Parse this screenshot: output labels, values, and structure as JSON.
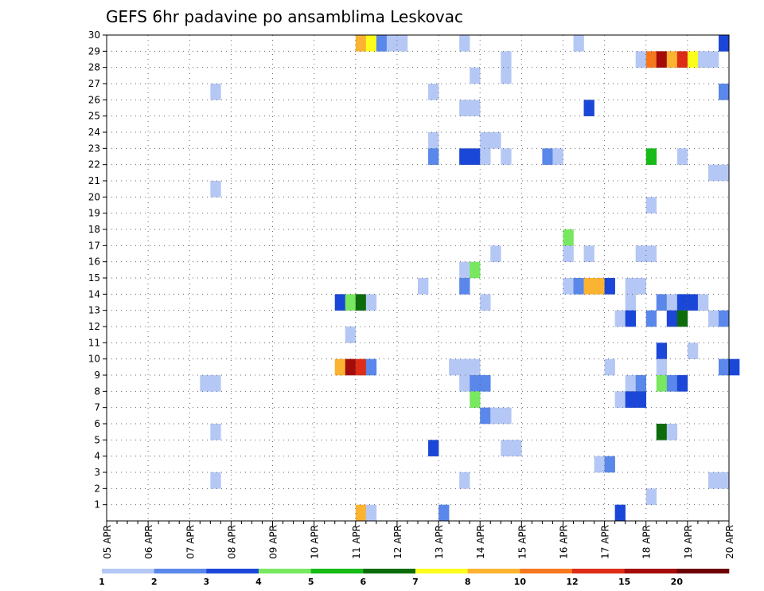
{
  "chart_data": {
    "type": "heatmap",
    "title": "GEFS 6hr padavine po ansamblima Leskovac",
    "x_tick_labels": [
      "05 APR",
      "06 APR",
      "07 APR",
      "08 APR",
      "09 APR",
      "10 APR",
      "11 APR",
      "12 APR",
      "13 APR",
      "14 APR",
      "15 APR",
      "16 APR",
      "17 APR",
      "18 APR",
      "19 APR",
      "20 APR"
    ],
    "y_tick_labels": [
      "1",
      "2",
      "3",
      "4",
      "5",
      "6",
      "7",
      "8",
      "9",
      "10",
      "11",
      "12",
      "13",
      "14",
      "15",
      "16",
      "17",
      "18",
      "19",
      "20",
      "21",
      "22",
      "23",
      "24",
      "25",
      "26",
      "27",
      "28",
      "29",
      "30"
    ],
    "time_step_hours": 6,
    "ylim": [
      0,
      30
    ],
    "grid": true,
    "legend_placement": "bottom",
    "colorbar": {
      "labels": [
        "1",
        "2",
        "3",
        "4",
        "5",
        "6",
        "7",
        "8",
        "10",
        "12",
        "15",
        "20"
      ],
      "colors": [
        "#b5c8f5",
        "#5a87ea",
        "#1b47d8",
        "#77e860",
        "#16bb16",
        "#0c6c0c",
        "#fdfd1c",
        "#fcb331",
        "#f7771e",
        "#dd2c17",
        "#a40c0b",
        "#6c0000"
      ]
    },
    "cells": [
      [
        24,
        30,
        "#fcb331"
      ],
      [
        25,
        30,
        "#fdfd1c"
      ],
      [
        26,
        30,
        "#5a87ea"
      ],
      [
        27,
        30,
        "#b5c8f5"
      ],
      [
        28,
        30,
        "#b5c8f5"
      ],
      [
        34,
        30,
        "#b5c8f5"
      ],
      [
        45,
        30,
        "#b5c8f5"
      ],
      [
        59,
        30,
        "#1b47d8"
      ],
      [
        51,
        29,
        "#b5c8f5"
      ],
      [
        52,
        29,
        "#f7771e"
      ],
      [
        53,
        29,
        "#a40c0b"
      ],
      [
        54,
        29,
        "#fcb331"
      ],
      [
        55,
        29,
        "#dd2c17"
      ],
      [
        56,
        29,
        "#fdfd1c"
      ],
      [
        57,
        29,
        "#b5c8f5"
      ],
      [
        58,
        29,
        "#b5c8f5"
      ],
      [
        38,
        29,
        "#b5c8f5"
      ],
      [
        35,
        28,
        "#b5c8f5"
      ],
      [
        38,
        28,
        "#b5c8f5"
      ],
      [
        10,
        27,
        "#b5c8f5"
      ],
      [
        31,
        27,
        "#b5c8f5"
      ],
      [
        59,
        27,
        "#5a87ea"
      ],
      [
        34,
        26,
        "#b5c8f5"
      ],
      [
        35,
        26,
        "#b5c8f5"
      ],
      [
        46,
        26,
        "#1b47d8"
      ],
      [
        31,
        24,
        "#b5c8f5"
      ],
      [
        36,
        24,
        "#b5c8f5"
      ],
      [
        37,
        24,
        "#b5c8f5"
      ],
      [
        31,
        23,
        "#5a87ea"
      ],
      [
        34,
        23,
        "#1b47d8"
      ],
      [
        35,
        23,
        "#1b47d8"
      ],
      [
        36,
        23,
        "#b5c8f5"
      ],
      [
        38,
        23,
        "#b5c8f5"
      ],
      [
        42,
        23,
        "#5a87ea"
      ],
      [
        43,
        23,
        "#b5c8f5"
      ],
      [
        52,
        23,
        "#16bb16"
      ],
      [
        55,
        23,
        "#b5c8f5"
      ],
      [
        58,
        22,
        "#b5c8f5"
      ],
      [
        59,
        22,
        "#b5c8f5"
      ],
      [
        10,
        21,
        "#b5c8f5"
      ],
      [
        52,
        20,
        "#b5c8f5"
      ],
      [
        44,
        18,
        "#77e860"
      ],
      [
        37,
        17,
        "#b5c8f5"
      ],
      [
        44,
        17,
        "#b5c8f5"
      ],
      [
        46,
        17,
        "#b5c8f5"
      ],
      [
        51,
        17,
        "#b5c8f5"
      ],
      [
        52,
        17,
        "#b5c8f5"
      ],
      [
        34,
        16,
        "#b5c8f5"
      ],
      [
        35,
        16,
        "#77e860"
      ],
      [
        30,
        15,
        "#b5c8f5"
      ],
      [
        34,
        15,
        "#5a87ea"
      ],
      [
        44,
        15,
        "#b5c8f5"
      ],
      [
        45,
        15,
        "#5a87ea"
      ],
      [
        46,
        15,
        "#fcb331"
      ],
      [
        47,
        15,
        "#fcb331"
      ],
      [
        48,
        15,
        "#1b47d8"
      ],
      [
        50,
        15,
        "#b5c8f5"
      ],
      [
        51,
        15,
        "#b5c8f5"
      ],
      [
        22,
        14,
        "#1b47d8"
      ],
      [
        23,
        14,
        "#77e860"
      ],
      [
        24,
        14,
        "#0c6c0c"
      ],
      [
        25,
        14,
        "#b5c8f5"
      ],
      [
        36,
        14,
        "#b5c8f5"
      ],
      [
        50,
        14,
        "#b5c8f5"
      ],
      [
        53,
        14,
        "#5a87ea"
      ],
      [
        54,
        14,
        "#b5c8f5"
      ],
      [
        55,
        14,
        "#1b47d8"
      ],
      [
        56,
        14,
        "#1b47d8"
      ],
      [
        57,
        14,
        "#b5c8f5"
      ],
      [
        49,
        13,
        "#b5c8f5"
      ],
      [
        50,
        13,
        "#1b47d8"
      ],
      [
        52,
        13,
        "#5a87ea"
      ],
      [
        54,
        13,
        "#1b47d8"
      ],
      [
        55,
        13,
        "#0c6c0c"
      ],
      [
        58,
        13,
        "#b5c8f5"
      ],
      [
        59,
        13,
        "#5a87ea"
      ],
      [
        23,
        12,
        "#b5c8f5"
      ],
      [
        53,
        11,
        "#1b47d8"
      ],
      [
        56,
        11,
        "#b5c8f5"
      ],
      [
        22,
        10,
        "#fcb331"
      ],
      [
        23,
        10,
        "#a40c0b"
      ],
      [
        24,
        10,
        "#dd2c17"
      ],
      [
        25,
        10,
        "#5a87ea"
      ],
      [
        33,
        10,
        "#b5c8f5"
      ],
      [
        34,
        10,
        "#b5c8f5"
      ],
      [
        35,
        10,
        "#b5c8f5"
      ],
      [
        48,
        10,
        "#b5c8f5"
      ],
      [
        53,
        10,
        "#b5c8f5"
      ],
      [
        59,
        10,
        "#5a87ea"
      ],
      [
        60,
        10,
        "#1b47d8"
      ],
      [
        9,
        9,
        "#b5c8f5"
      ],
      [
        10,
        9,
        "#b5c8f5"
      ],
      [
        34,
        9,
        "#b5c8f5"
      ],
      [
        35,
        9,
        "#5a87ea"
      ],
      [
        36,
        9,
        "#5a87ea"
      ],
      [
        50,
        9,
        "#b5c8f5"
      ],
      [
        51,
        9,
        "#5a87ea"
      ],
      [
        53,
        9,
        "#77e860"
      ],
      [
        54,
        9,
        "#5a87ea"
      ],
      [
        55,
        9,
        "#1b47d8"
      ],
      [
        35,
        8,
        "#77e860"
      ],
      [
        49,
        8,
        "#b5c8f5"
      ],
      [
        50,
        8,
        "#1b47d8"
      ],
      [
        51,
        8,
        "#1b47d8"
      ],
      [
        36,
        7,
        "#5a87ea"
      ],
      [
        37,
        7,
        "#b5c8f5"
      ],
      [
        38,
        7,
        "#b5c8f5"
      ],
      [
        10,
        6,
        "#b5c8f5"
      ],
      [
        53,
        6,
        "#0c6c0c"
      ],
      [
        54,
        6,
        "#b5c8f5"
      ],
      [
        31,
        5,
        "#1b47d8"
      ],
      [
        38,
        5,
        "#b5c8f5"
      ],
      [
        39,
        5,
        "#b5c8f5"
      ],
      [
        47,
        4,
        "#b5c8f5"
      ],
      [
        48,
        4,
        "#5a87ea"
      ],
      [
        10,
        3,
        "#b5c8f5"
      ],
      [
        34,
        3,
        "#b5c8f5"
      ],
      [
        58,
        3,
        "#b5c8f5"
      ],
      [
        59,
        3,
        "#b5c8f5"
      ],
      [
        52,
        2,
        "#b5c8f5"
      ],
      [
        24,
        1,
        "#fcb331"
      ],
      [
        25,
        1,
        "#b5c8f5"
      ],
      [
        32,
        1,
        "#5a87ea"
      ],
      [
        49,
        1,
        "#1b47d8"
      ]
    ]
  }
}
